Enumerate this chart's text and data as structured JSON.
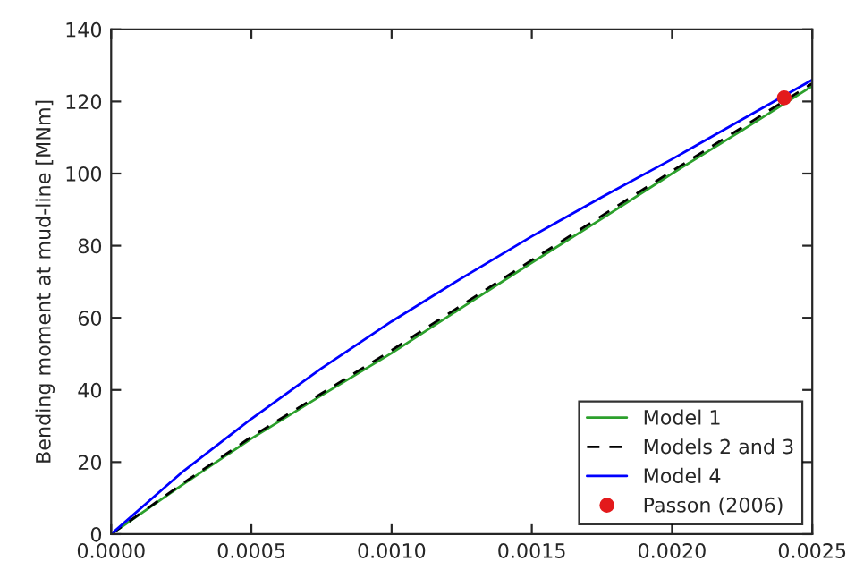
{
  "chart_data": {
    "type": "line",
    "ylabel": "Bending moment at mud-line [MNm]",
    "x": [
      0,
      0.00025,
      0.0005,
      0.00075,
      0.001,
      0.00125,
      0.0015,
      0.00175,
      0.002,
      0.00225,
      0.0025
    ],
    "series": [
      {
        "name": "Model 1",
        "color": "#2ca02c",
        "line_style": "solid",
        "values": [
          0,
          13.5,
          26.5,
          38.5,
          50.2,
          62.8,
          75.3,
          87.5,
          100,
          112,
          124.3
        ]
      },
      {
        "name": "Models 2 and 3",
        "color": "#000000",
        "line_style": "dashed",
        "values": [
          0,
          13.8,
          27,
          39,
          51,
          63.5,
          76,
          88.3,
          100.7,
          112.8,
          125
        ]
      },
      {
        "name": "Model 4",
        "color": "#0000ff",
        "line_style": "solid",
        "values": [
          0,
          17,
          32,
          46,
          59,
          71,
          82.6,
          93.5,
          104,
          115,
          126
        ]
      },
      {
        "name": "Passon (2006)",
        "type": "scatter",
        "marker": "circle",
        "color": "#e31a1c",
        "x": [
          0.0024
        ],
        "values": [
          121
        ]
      }
    ],
    "xlim": [
      0,
      0.0025
    ],
    "xticks": [
      {
        "value": 0,
        "label": "0.0000"
      },
      {
        "value": 0.0005,
        "label": "0.0005"
      },
      {
        "value": 0.001,
        "label": "0.0010"
      },
      {
        "value": 0.0015,
        "label": "0.0015"
      },
      {
        "value": 0.002,
        "label": "0.0020"
      },
      {
        "value": 0.0025,
        "label": "0.0025"
      }
    ],
    "ylim": [
      0,
      140
    ],
    "yticks": [
      0,
      20,
      40,
      60,
      80,
      100,
      120,
      140
    ],
    "grid": false,
    "legend": "bottom right"
  }
}
